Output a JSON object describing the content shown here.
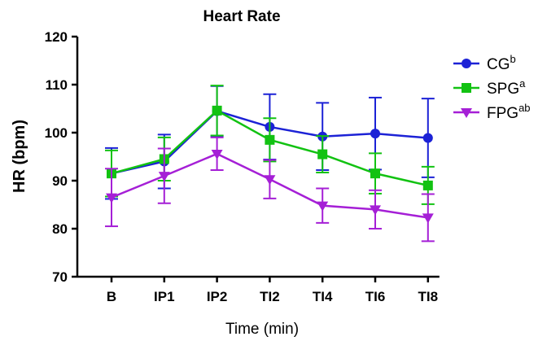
{
  "chart_data": {
    "type": "line",
    "title": "Heart Rate",
    "xlabel": "Time (min)",
    "ylabel": "HR (bpm)",
    "categories": [
      "B",
      "IP1",
      "IP2",
      "TI2",
      "TI4",
      "TI6",
      "TI8"
    ],
    "ylim": [
      70,
      120
    ],
    "yticks": [
      70,
      80,
      90,
      100,
      110,
      120
    ],
    "grid": false,
    "legend_position": "top-right",
    "series": [
      {
        "name": "CG",
        "name_sup": "b",
        "color": "#1c22d6",
        "marker": "circle",
        "values": [
          91.5,
          94.0,
          104.5,
          101.2,
          99.2,
          99.8,
          98.9
        ],
        "error": [
          5.3,
          5.6,
          5.2,
          6.8,
          7.0,
          7.5,
          8.2
        ]
      },
      {
        "name": "SPG",
        "name_sup": "a",
        "color": "#12c212",
        "marker": "square",
        "values": [
          91.5,
          94.5,
          104.6,
          98.5,
          95.5,
          91.5,
          89.0
        ],
        "error": [
          4.8,
          4.5,
          5.2,
          4.5,
          3.8,
          4.2,
          3.9
        ]
      },
      {
        "name": "FPG",
        "name_sup": "ab",
        "color": "#a51fd6",
        "marker": "triangle-down",
        "values": [
          86.5,
          91.0,
          95.6,
          90.3,
          84.8,
          84.0,
          82.3
        ],
        "error": [
          6.0,
          5.7,
          3.4,
          4.0,
          3.6,
          4.0,
          4.9
        ]
      }
    ]
  }
}
